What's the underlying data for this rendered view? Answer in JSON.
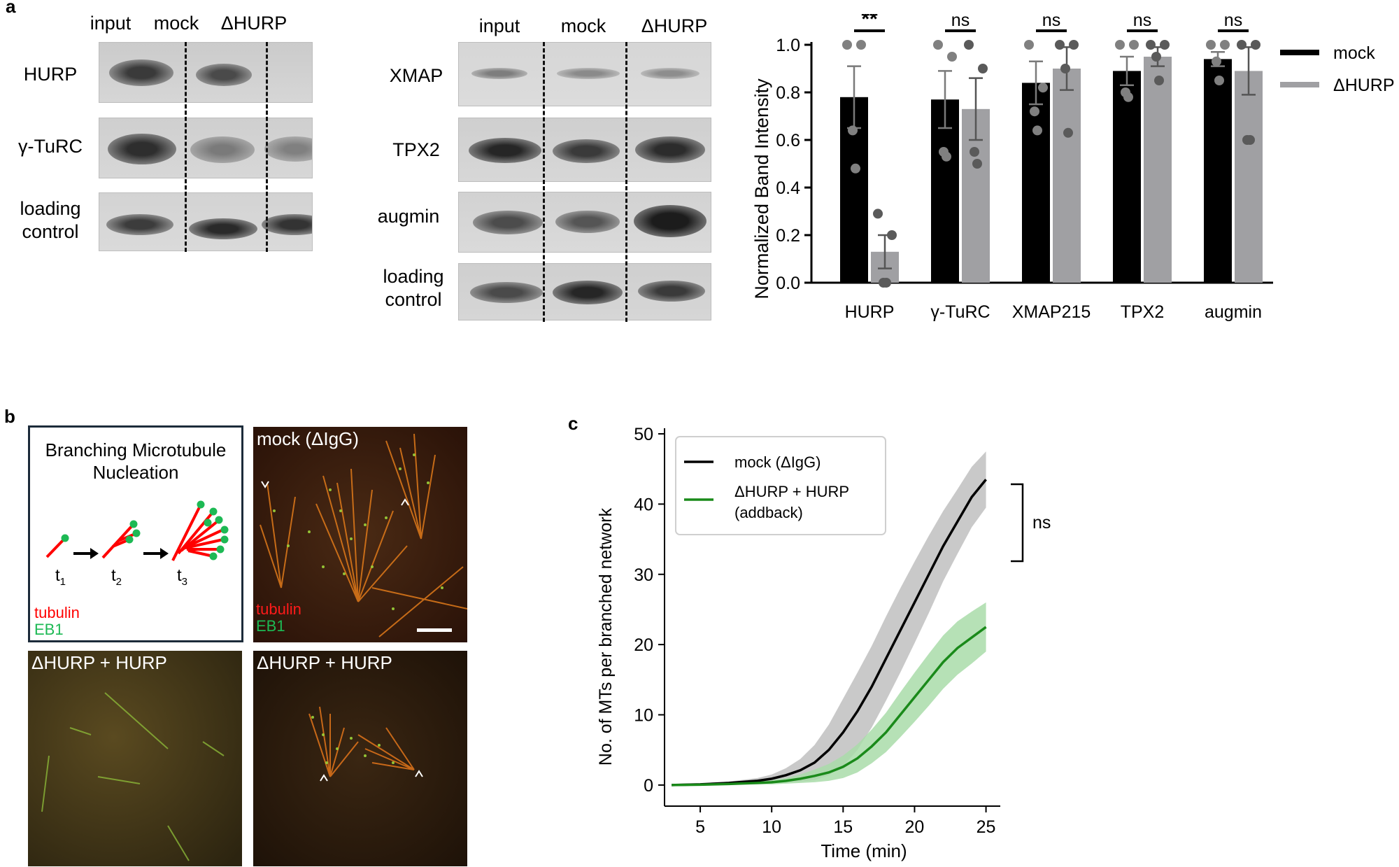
{
  "panels": {
    "a": "a",
    "b": "b",
    "c": "c"
  },
  "blot_left": {
    "lanes": [
      "input",
      "mock",
      "ΔHURP"
    ],
    "rows": [
      {
        "label": "HURP"
      },
      {
        "label": "γ-TuRC"
      },
      {
        "label_line1": "loading",
        "label_line2": "control"
      }
    ]
  },
  "blot_right": {
    "lanes": [
      "input",
      "mock",
      "ΔHURP"
    ],
    "rows": [
      {
        "label": "XMAP"
      },
      {
        "label": "TPX2"
      },
      {
        "label": "augmin"
      },
      {
        "label_line1": "loading",
        "label_line2": "control"
      }
    ]
  },
  "bar_chart": {
    "chart_data": {
      "type": "bar",
      "categories": [
        "HURP",
        "γ-TuRC",
        "XMAP215",
        "TPX2",
        "augmin"
      ],
      "series": [
        {
          "name": "mock",
          "color": "#000000",
          "values": [
            0.78,
            0.77,
            0.84,
            0.89,
            0.94
          ],
          "sem": [
            0.13,
            0.12,
            0.09,
            0.06,
            0.03
          ],
          "points": [
            [
              1.0,
              1.0,
              0.64,
              0.48
            ],
            [
              1.0,
              0.95,
              0.55,
              0.53
            ],
            [
              1.0,
              0.82,
              0.72,
              0.64
            ],
            [
              1.0,
              1.0,
              0.8,
              0.78
            ],
            [
              1.0,
              1.0,
              0.93,
              0.85
            ]
          ]
        },
        {
          "name": "ΔHURP",
          "color": "#a0a0a3",
          "values": [
            0.13,
            0.73,
            0.9,
            0.95,
            0.89
          ],
          "sem": [
            0.07,
            0.13,
            0.09,
            0.04,
            0.1
          ],
          "points": [
            [
              0.29,
              0.2,
              0.0,
              0.0
            ],
            [
              1.0,
              0.9,
              0.55,
              0.5
            ],
            [
              1.0,
              1.0,
              0.9,
              0.63
            ],
            [
              1.0,
              1.0,
              0.95,
              0.85
            ],
            [
              1.0,
              1.0,
              0.6,
              0.6
            ]
          ]
        }
      ],
      "significance": [
        "**",
        "ns",
        "ns",
        "ns",
        "ns"
      ],
      "ylabel": "Normalized Band Intensity",
      "ylim": [
        0,
        1.0
      ],
      "yticks": [
        "0.0",
        "0.2",
        "0.4",
        "0.6",
        "0.8",
        "1.0"
      ],
      "legend_placement": "top-right"
    }
  },
  "schematic": {
    "title_line1": "Branching Microtubule",
    "title_line2": "Nucleation",
    "time_labels": [
      "t",
      "t",
      "t"
    ],
    "time_subs": [
      "1",
      "2",
      "3"
    ],
    "legend_tubulin": "tubulin",
    "legend_eb1": "EB1",
    "colors": {
      "tubulin": "#ff0000",
      "eb1": "#1db954"
    }
  },
  "micrographs": [
    {
      "label": "mock (ΔIgG)",
      "legend_tubulin": "tubulin",
      "legend_eb1": "EB1"
    },
    {
      "label": "ΔHURP + HURP"
    },
    {
      "label": "ΔHURP + HURP"
    }
  ],
  "line_chart": {
    "chart_data": {
      "type": "line",
      "x_label": "Time (min)",
      "y_label": "No. of MTs per branched network",
      "xlim": [
        2.5,
        26
      ],
      "ylim": [
        -3,
        50
      ],
      "xticks": [
        "5",
        "10",
        "15",
        "20",
        "25"
      ],
      "yticks": [
        "0",
        "10",
        "20",
        "30",
        "40",
        "50"
      ],
      "series": [
        {
          "name": "mock (ΔIgG)",
          "color": "#000000",
          "band_color": "#bfbfbf",
          "x": [
            3,
            5,
            7,
            9,
            10,
            11,
            12,
            13,
            14,
            15,
            16,
            17,
            18,
            19,
            20,
            21,
            22,
            23,
            24,
            25
          ],
          "y": [
            0,
            0.1,
            0.3,
            0.6,
            0.9,
            1.4,
            2.1,
            3.2,
            5.0,
            7.5,
            10.5,
            14.0,
            18.0,
            22.0,
            26.0,
            30.0,
            34.0,
            37.5,
            41.0,
            43.5
          ],
          "band": [
            0,
            0.05,
            0.2,
            0.4,
            0.6,
            1.0,
            1.6,
            2.5,
            3.6,
            4.8,
            5.5,
            5.8,
            6.0,
            6.0,
            5.8,
            5.5,
            5.0,
            4.6,
            4.3,
            4.0
          ]
        },
        {
          "name_line1": "ΔHURP + HURP",
          "name_line2": "(addback)",
          "color": "#1a8a1a",
          "band_color": "#a9dca9",
          "x": [
            3,
            5,
            7,
            9,
            10,
            11,
            12,
            13,
            14,
            15,
            16,
            17,
            18,
            19,
            20,
            21,
            22,
            23,
            24,
            25
          ],
          "y": [
            0,
            0.05,
            0.15,
            0.3,
            0.4,
            0.6,
            0.9,
            1.3,
            1.8,
            2.6,
            3.8,
            5.5,
            7.5,
            10.0,
            12.5,
            15.0,
            17.5,
            19.5,
            21.0,
            22.5
          ],
          "band": [
            0,
            0.03,
            0.1,
            0.2,
            0.3,
            0.4,
            0.6,
            0.9,
            1.2,
            1.6,
            2.0,
            2.4,
            2.8,
            3.2,
            3.5,
            3.7,
            3.8,
            3.8,
            3.7,
            3.5
          ]
        }
      ],
      "annotation": "ns",
      "legend_placement": "top-left"
    }
  }
}
